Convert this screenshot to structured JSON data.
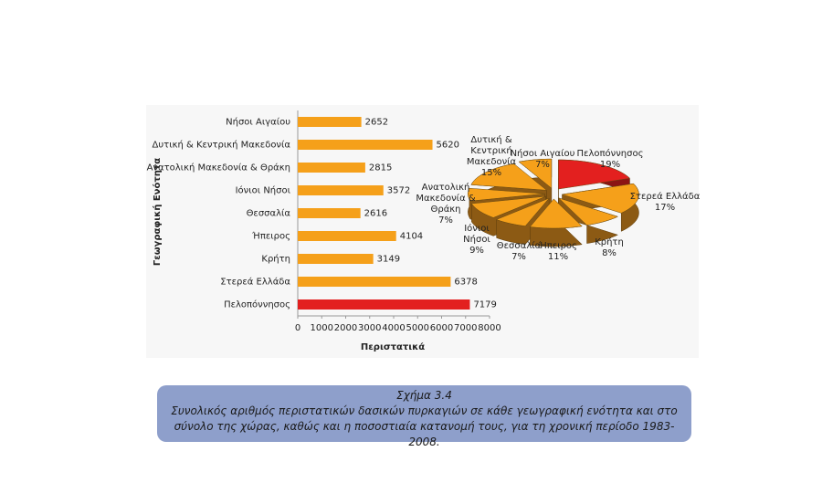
{
  "chart_data": [
    {
      "type": "bar",
      "orientation": "horizontal",
      "x_label": "Περιστατικά",
      "y_label": "Γεωγραφική Ενότητα",
      "categories": [
        "Νήσοι Αιγαίου",
        "Δυτική & Κεντρική Μακεδονία",
        "Ανατολική Μακεδονία & Θράκη",
        "Ιόνιοι Νήσοι",
        "Θεσσαλία",
        "Ήπειρος",
        "Κρήτη",
        "Στερεά Ελλάδα",
        "Πελοπόννησος"
      ],
      "values": [
        2652,
        5620,
        2815,
        3572,
        2616,
        4104,
        3149,
        6378,
        7179
      ],
      "colors": [
        "#f5a01a",
        "#f5a01a",
        "#f5a01a",
        "#f5a01a",
        "#f5a01a",
        "#f5a01a",
        "#f5a01a",
        "#f5a01a",
        "#e3201f"
      ],
      "xlim": [
        0,
        8000
      ],
      "xticks": [
        0,
        1000,
        2000,
        3000,
        4000,
        5000,
        6000,
        7000,
        8000
      ],
      "grid": false
    },
    {
      "type": "pie",
      "style": "3d-exploded",
      "categories": [
        "Πελοπόννησος",
        "Στερεά Ελλάδα",
        "Κρήτη",
        "Ήπειρος",
        "Θεσσαλία",
        "Ιόνιοι Νήσοι",
        "Ανατολική Μακεδονία & Θράκη",
        "Δυτική & Κεντρική Μακεδονία",
        "Νήσοι Αιγαίου"
      ],
      "values": [
        19,
        17,
        8,
        11,
        7,
        9,
        7,
        15,
        7
      ],
      "value_labels": [
        "19%",
        "17%",
        "8%",
        "11%",
        "7%",
        "9%",
        "7%",
        "15%",
        "7%"
      ],
      "colors": [
        "#e3201f",
        "#f5a01a",
        "#f5a01a",
        "#f5a01a",
        "#f5a01a",
        "#f5a01a",
        "#f5a01a",
        "#f5a01a",
        "#f5a01a"
      ]
    }
  ],
  "caption": {
    "label": "Σχήμα 3.4",
    "text": "Συνολικός αριθμός περιστατικών δασικών πυρκαγιών σε κάθε γεωγραφική ενότητα και στο σύνολο της χώρας, καθώς και η ποσοστιαία κατανομή τους, για τη χρονική περίοδο 1983-2008."
  }
}
